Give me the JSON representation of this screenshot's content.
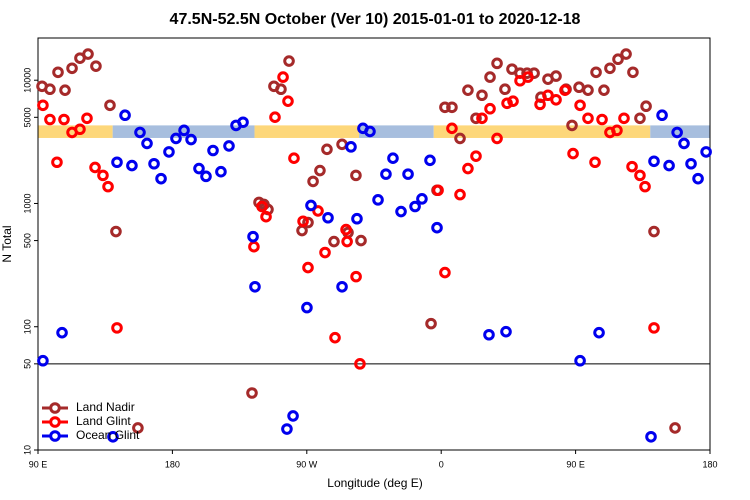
{
  "chart_data": {
    "type": "scatter",
    "title": "47.5N-52.5N October (Ver 10)   2015-01-01 to 2020-12-18",
    "x_label": "Longitude (deg E)",
    "y_label": "N Total",
    "log_y": true,
    "legend": "bottom-left",
    "xlim": [
      90,
      540
    ],
    "ylim": [
      10,
      22000
    ],
    "xticks": [
      {
        "value": 90,
        "label": "90 E"
      },
      180,
      {
        "value": 270,
        "label": "90 W"
      },
      {
        "value": 360,
        "label": "0"
      },
      {
        "value": 450,
        "label": "90 E"
      },
      {
        "value": 540,
        "label": "180"
      }
    ],
    "yticks": [
      10,
      50,
      100,
      500,
      1000,
      5000,
      10000
    ],
    "hline": 50,
    "band": {
      "range": [
        3400,
        4300
      ],
      "segments": [
        {
          "xlim": [
            90,
            140
          ],
          "color": "#fdd77a"
        },
        {
          "xlim": [
            140,
            235
          ],
          "color": "#a7bede"
        },
        {
          "xlim": [
            235,
            305
          ],
          "color": "#fdd77a"
        },
        {
          "xlim": [
            305,
            355
          ],
          "color": "#a7bede"
        },
        {
          "xlim": [
            355,
            500
          ],
          "color": "#fdd77a"
        },
        {
          "xlim": [
            500,
            540
          ],
          "color": "#a7bede"
        }
      ]
    },
    "series": [
      {
        "name": "Land Nadir",
        "color": "#a52a2a",
        "x": [
          92.7,
          98.0,
          103.4,
          108.1,
          112.8,
          118.1,
          123.5,
          128.8,
          138.2,
          142.2,
          156.9,
          233.3,
          238.0,
          241.3,
          244.0,
          248.0,
          252.7,
          258.1,
          266.8,
          270.8,
          274.2,
          278.8,
          283.5,
          288.2,
          293.6,
          297.6,
          302.9,
          306.3,
          353.2,
          357.2,
          362.5,
          367.2,
          372.6,
          377.9,
          383.3,
          387.3,
          392.7,
          397.4,
          402.7,
          407.4,
          412.8,
          417.5,
          422.2,
          426.8,
          431.5,
          436.9,
          443.6,
          447.6,
          452.3,
          458.3,
          463.7,
          469.0,
          473.0,
          478.4,
          483.8,
          488.4,
          493.1,
          497.2,
          502.5,
          516.6
        ],
        "values": [
          8930,
          8450,
          11600,
          8300,
          12500,
          15100,
          16300,
          13000,
          6260,
          592,
          15.1,
          29,
          1020,
          982,
          894,
          8930,
          8450,
          14300,
          603,
          701,
          1510,
          1850,
          2750,
          491,
          3020,
          581,
          1690,
          500,
          106,
          1280,
          6030,
          6030,
          3370,
          8300,
          4910,
          7550,
          10600,
          13700,
          8450,
          12300,
          11400,
          11400,
          11400,
          7280,
          10200,
          10800,
          8450,
          4300,
          8770,
          8300,
          11600,
          8300,
          12500,
          14800,
          16300,
          11600,
          4910,
          6150,
          592,
          15.1
        ]
      },
      {
        "name": "Land Glint",
        "color": "#ff0000",
        "x": [
          93.3,
          98.0,
          102.7,
          107.4,
          112.8,
          118.1,
          122.8,
          128.2,
          133.5,
          136.9,
          142.9,
          234.6,
          240.0,
          242.7,
          248.7,
          254.1,
          257.4,
          261.4,
          267.5,
          270.8,
          277.5,
          282.2,
          288.9,
          296.3,
          297.0,
          303.0,
          305.6,
          357.9,
          362.5,
          367.2,
          372.6,
          377.9,
          383.3,
          387.3,
          392.7,
          397.4,
          404.1,
          408.1,
          412.8,
          418.1,
          426.2,
          431.5,
          436.9,
          442.9,
          448.3,
          453.0,
          458.3,
          463.0,
          467.7,
          473.0,
          477.7,
          482.4,
          487.8,
          493.1,
          496.5,
          502.5
        ],
        "values": [
          6260,
          4800,
          2160,
          4800,
          3770,
          4000,
          4910,
          1960,
          1690,
          1370,
          97.9,
          446,
          945,
          781,
          5010,
          10600,
          6760,
          2330,
          717,
          302,
          870,
          400,
          81.5,
          614,
          491,
          255,
          50,
          1280,
          275,
          4070,
          1180,
          1920,
          2420,
          4910,
          5870,
          3370,
          6500,
          6760,
          9900,
          10600,
          6370,
          7550,
          6940,
          8300,
          2540,
          6260,
          4910,
          2160,
          4800,
          3770,
          3920,
          4910,
          1990,
          1690,
          1370,
          97.9
        ]
      },
      {
        "name": "Ocean Glint",
        "color": "#0000ee",
        "x": [
          93.3,
          106.1,
          140.2,
          142.9,
          148.3,
          152.9,
          158.3,
          163.0,
          167.7,
          172.4,
          177.7,
          182.4,
          187.8,
          192.5,
          197.8,
          202.5,
          207.2,
          212.5,
          217.9,
          222.6,
          227.3,
          234.0,
          235.3,
          256.7,
          260.8,
          270.1,
          272.8,
          284.2,
          293.6,
          299.6,
          303.6,
          307.6,
          312.3,
          317.7,
          323.0,
          327.7,
          333.1,
          337.8,
          342.5,
          347.1,
          352.5,
          357.2,
          392.0,
          403.4,
          453.0,
          465.7,
          500.5,
          502.5,
          507.9,
          512.6,
          518.0,
          522.6,
          527.3,
          532.0,
          537.4
        ],
        "values": [
          53,
          89.5,
          12.8,
          2160,
          5200,
          2030,
          3770,
          3070,
          2100,
          1590,
          2620,
          3370,
          3920,
          3300,
          1920,
          1660,
          2690,
          1810,
          2930,
          4300,
          4560,
          538,
          211,
          14.8,
          18.9,
          143,
          964,
          766,
          211,
          2880,
          752,
          4070,
          3840,
          1070,
          1730,
          2330,
          860,
          1730,
          945,
          1090,
          2240,
          636,
          86.1,
          91.2,
          53,
          89.5,
          12.8,
          2200,
          5200,
          2030,
          3770,
          3070,
          2100,
          1590,
          2620
        ]
      }
    ]
  }
}
